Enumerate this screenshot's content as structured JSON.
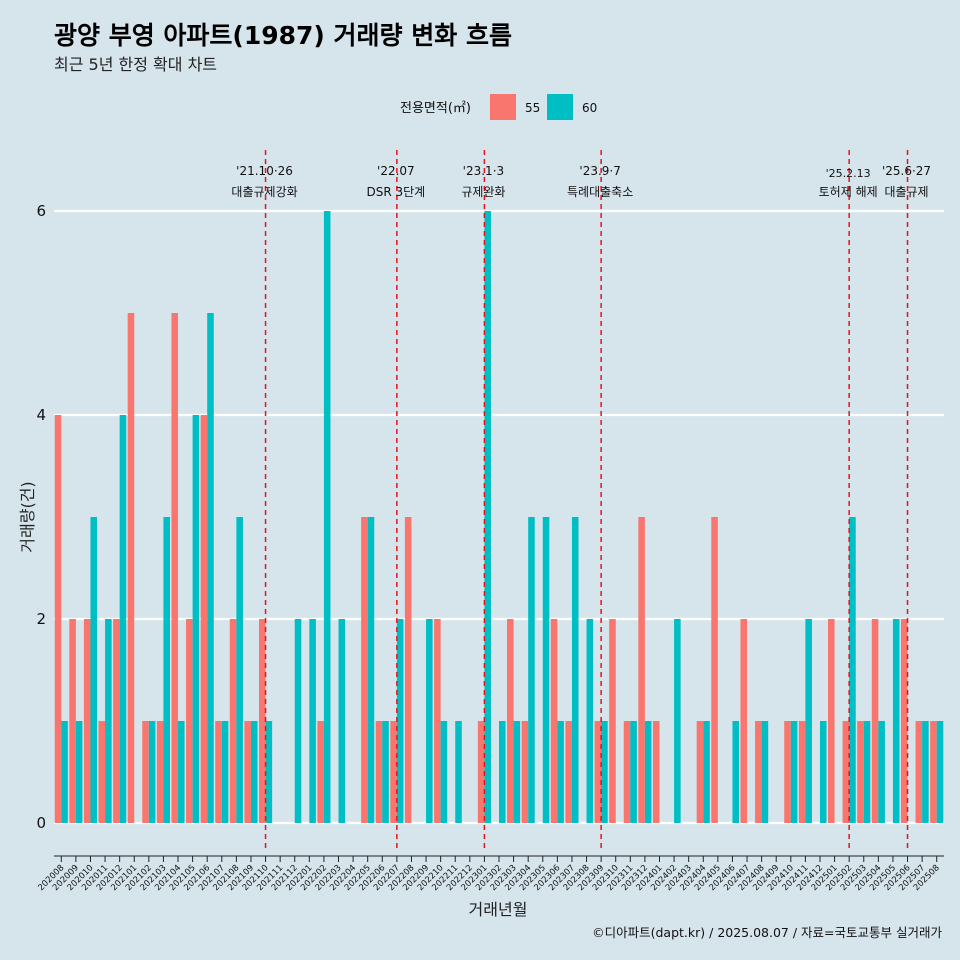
{
  "chart_data": {
    "type": "bar",
    "title": "광양 부영 아파트(1987) 거래량 변화 흐름",
    "subtitle": "최근 5년 한정 확대 차트",
    "xlabel": "거래년월",
    "ylabel": "거래량(건)",
    "legend_title": "전용면적(㎡)",
    "legend_position": "top",
    "ylim": [
      0,
      6
    ],
    "yticks": [
      0,
      2,
      4,
      6
    ],
    "grid": true,
    "categories": [
      "202008",
      "202009",
      "202010",
      "202011",
      "202012",
      "202101",
      "202102",
      "202103",
      "202104",
      "202105",
      "202106",
      "202107",
      "202108",
      "202109",
      "202110",
      "202111",
      "202112",
      "202201",
      "202202",
      "202203",
      "202204",
      "202205",
      "202206",
      "202207",
      "202208",
      "202209",
      "202210",
      "202211",
      "202212",
      "202301",
      "202302",
      "202303",
      "202304",
      "202305",
      "202306",
      "202307",
      "202308",
      "202309",
      "202310",
      "202311",
      "202312",
      "202401",
      "202402",
      "202403",
      "202404",
      "202405",
      "202406",
      "202407",
      "202408",
      "202409",
      "202410",
      "202411",
      "202412",
      "202501",
      "202502",
      "202503",
      "202504",
      "202505",
      "202506",
      "202507",
      "202508"
    ],
    "series": [
      {
        "name": "55",
        "color": "#f8766d",
        "values": [
          4,
          2,
          2,
          1,
          2,
          5,
          1,
          1,
          5,
          2,
          4,
          1,
          2,
          1,
          2,
          0,
          0,
          0,
          1,
          0,
          0,
          3,
          1,
          1,
          3,
          0,
          2,
          0,
          0,
          1,
          0,
          2,
          1,
          0,
          2,
          1,
          0,
          1,
          2,
          1,
          3,
          1,
          0,
          0,
          1,
          3,
          0,
          2,
          1,
          0,
          1,
          1,
          0,
          2,
          1,
          1,
          2,
          0,
          2,
          1,
          1
        ]
      },
      {
        "name": "60",
        "color": "#00bfc4",
        "values": [
          1,
          1,
          3,
          2,
          4,
          0,
          1,
          3,
          1,
          4,
          5,
          1,
          3,
          1,
          1,
          0,
          2,
          2,
          6,
          2,
          0,
          3,
          1,
          2,
          0,
          2,
          1,
          1,
          0,
          6,
          1,
          1,
          3,
          3,
          1,
          3,
          2,
          1,
          0,
          1,
          1,
          0,
          2,
          0,
          1,
          0,
          1,
          0,
          1,
          0,
          1,
          2,
          1,
          0,
          3,
          1,
          1,
          2,
          0,
          1,
          1
        ]
      }
    ],
    "annotations": [
      {
        "category": "202110",
        "date": "'21.10·26",
        "label": "대출규제강화"
      },
      {
        "category": "202207",
        "date": "'22.07",
        "label": "DSR 3단계"
      },
      {
        "category": "202301",
        "date": "'23.1·3",
        "label": "규제완화"
      },
      {
        "category": "202309",
        "date": "'23.9·7",
        "label": "특례대출축소"
      },
      {
        "category": "202502",
        "date": "'25.2.13",
        "label": "토허제 해제"
      },
      {
        "category": "202506",
        "date": "'25.6·27",
        "label": "대출규제"
      }
    ],
    "annotation_color": "#e8111a",
    "caption": "©디아파트(dapt.kr) / 2025.08.07 / 자료=국토교통부 실거래가"
  }
}
